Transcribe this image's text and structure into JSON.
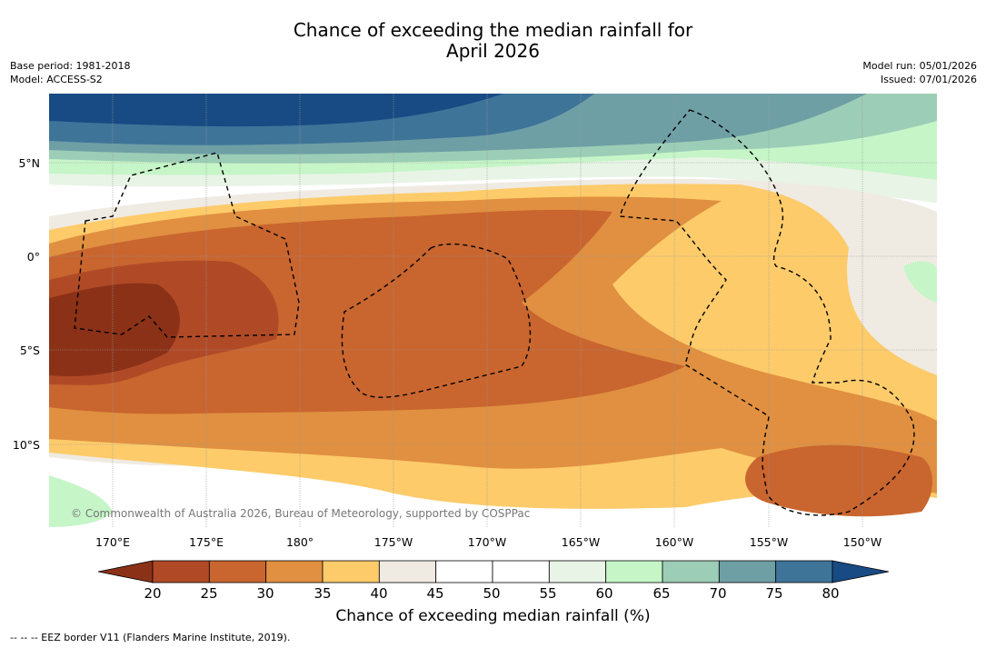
{
  "title": {
    "line1": "Chance of exceeding the median rainfall for",
    "line2": "April 2026"
  },
  "meta_left": {
    "base_period": "Base period: 1981-2018",
    "model": "Model: ACCESS-S2"
  },
  "meta_right": {
    "model_run": "Model run: 05/01/2026",
    "issued": "Issued: 07/01/2026"
  },
  "map": {
    "lat_labels": [
      "5°N",
      "0°",
      "5°S",
      "10°S"
    ],
    "lon_labels": [
      "170°E",
      "175°E",
      "180°",
      "175°W",
      "170°W",
      "165°W",
      "160°W",
      "155°W",
      "150°W"
    ],
    "copyright": "© Commonwealth of Australia 2026, Bureau of Meteorology, supported by COSPPac"
  },
  "colorbar": {
    "ticks": [
      "20",
      "25",
      "30",
      "35",
      "40",
      "45",
      "50",
      "55",
      "60",
      "65",
      "70",
      "75",
      "80"
    ],
    "colors": [
      "#8b3117",
      "#b04a26",
      "#c9652f",
      "#e09040",
      "#fdcb6a",
      "#efebe3",
      "#ffffff",
      "#ffffff",
      "#e8f4e6",
      "#c6f5c8",
      "#9ccdb6",
      "#6e9fa5",
      "#3f7499",
      "#184b84"
    ],
    "label": "Chance of exceeding median rainfall (%)"
  },
  "footnote": "--  --  -- EEZ border V11 (Flanders Marine Institute, 2019)."
}
